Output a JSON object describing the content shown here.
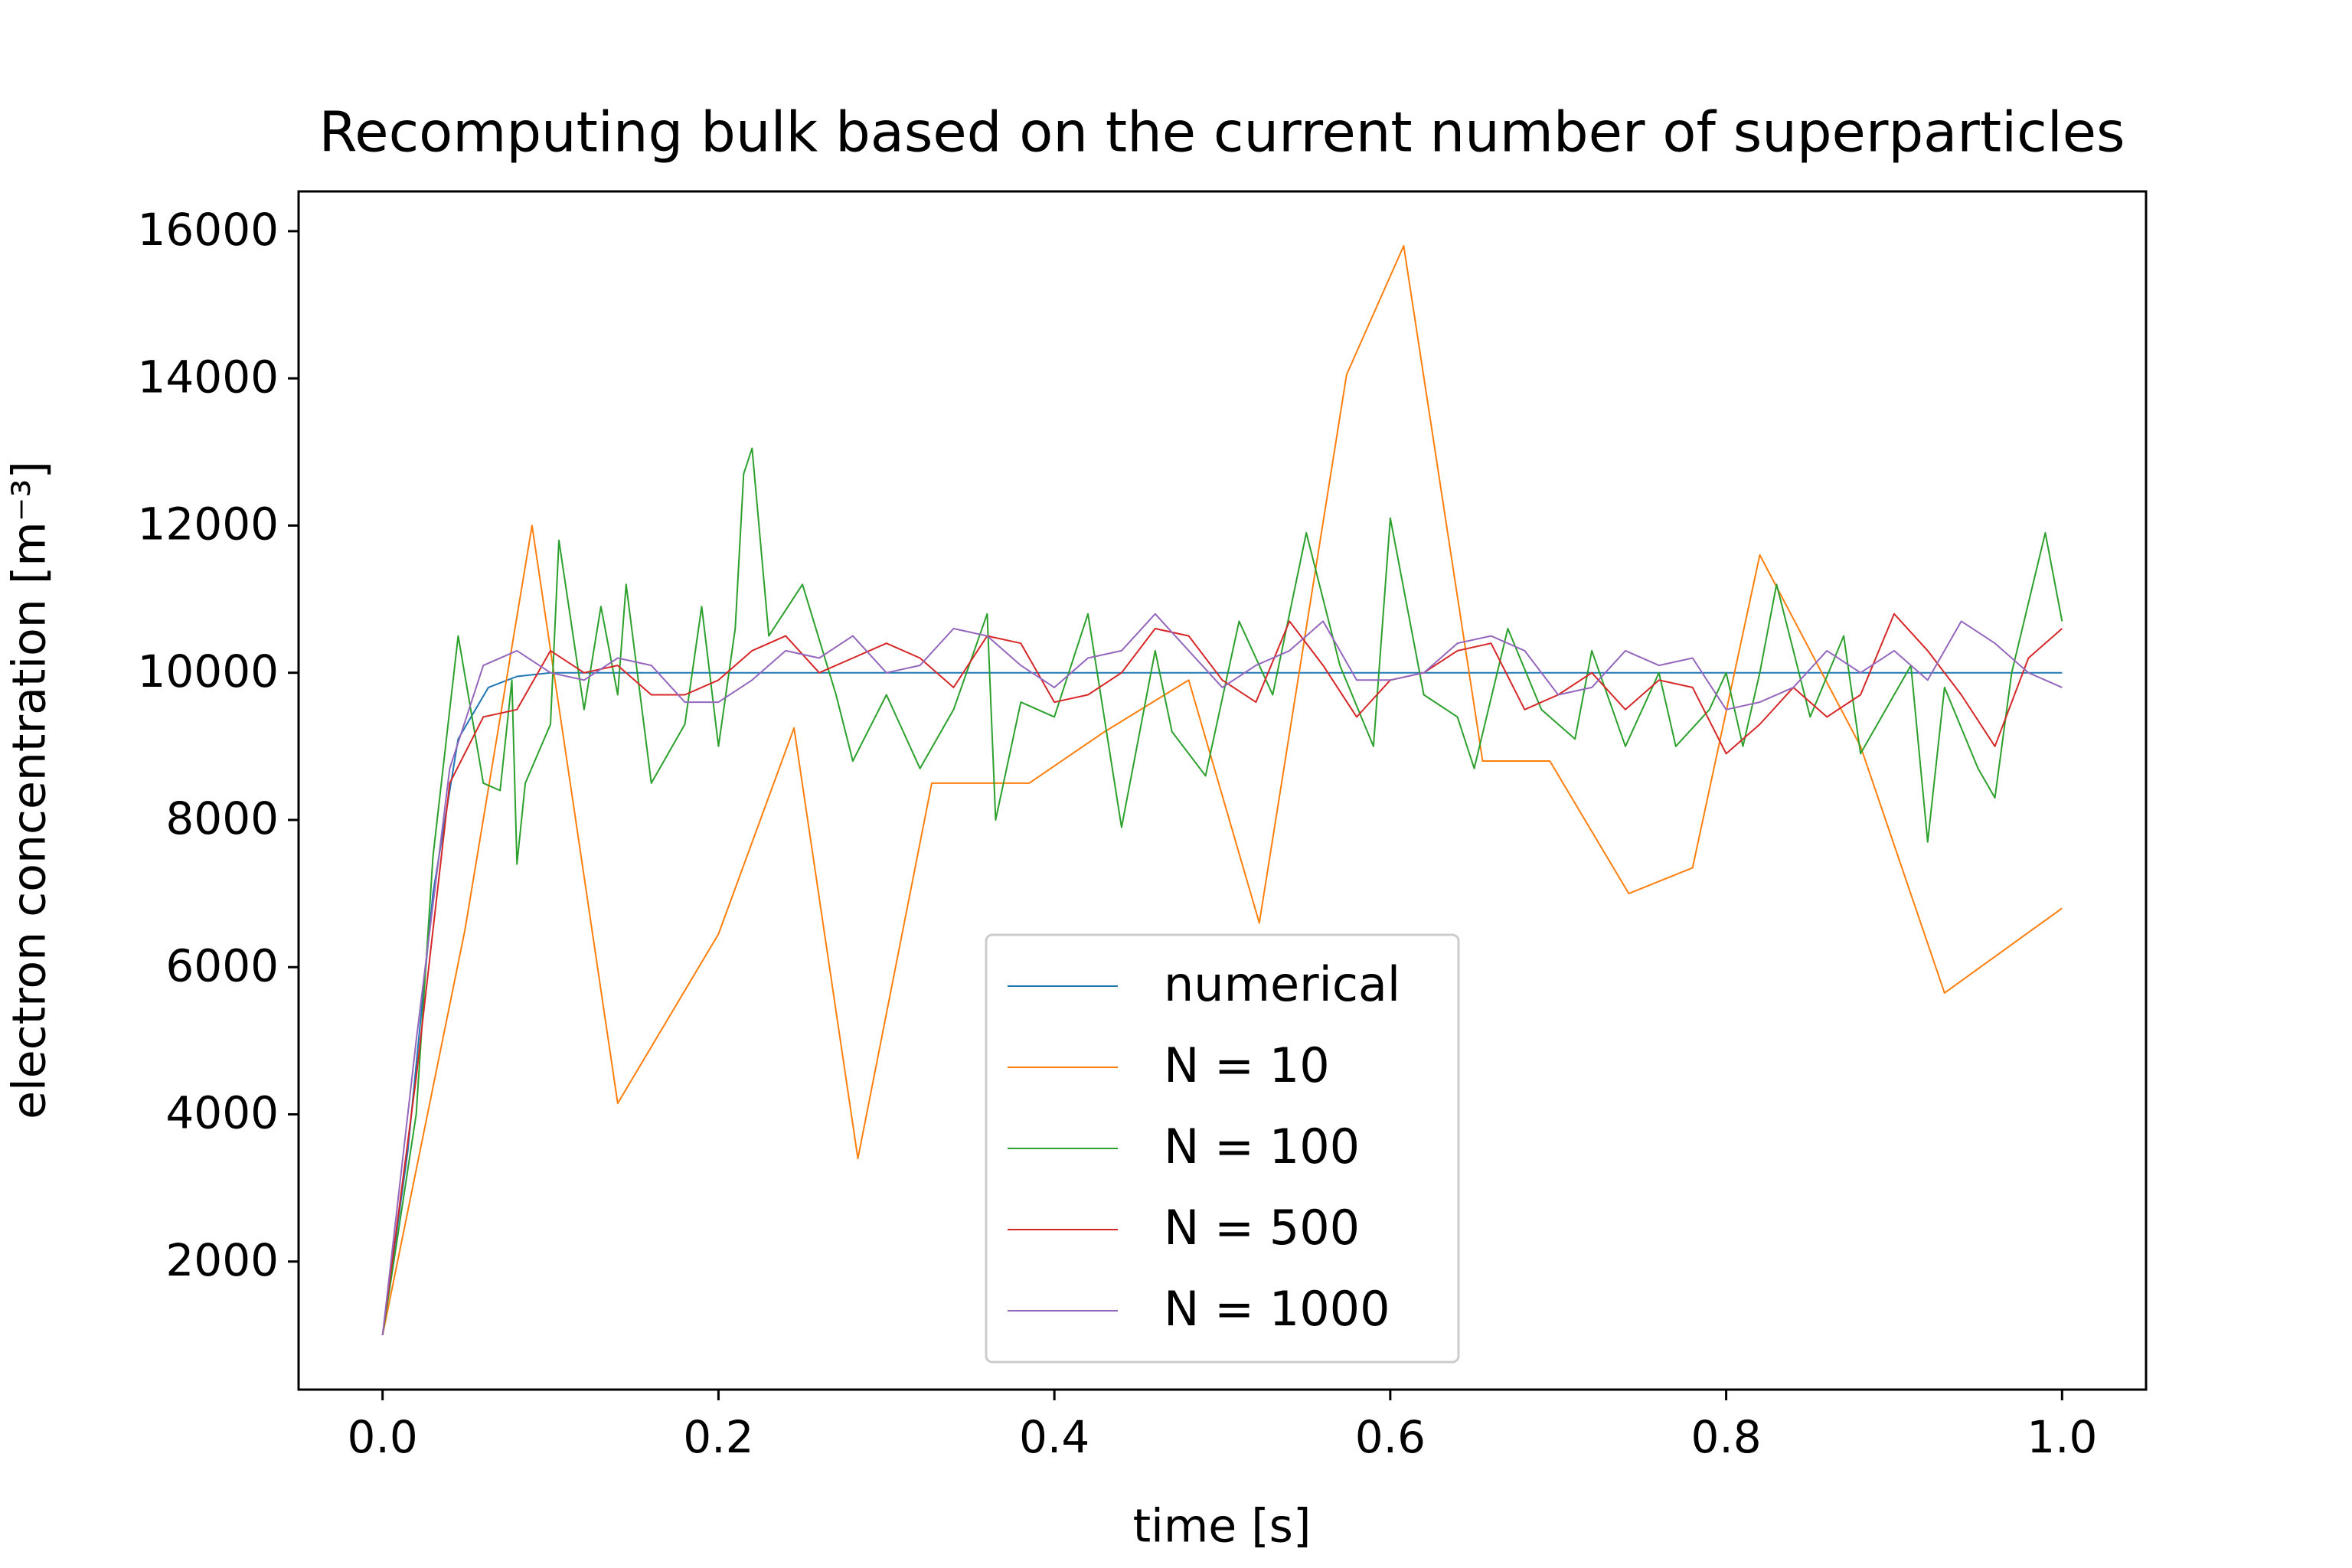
{
  "chart_data": {
    "type": "line",
    "title": "Recomputing bulk based on the current number of superparticles",
    "x_label": "time [s]",
    "y_label": "electron concentration [m⁻³]",
    "xlim": [
      -0.05,
      1.05
    ],
    "ylim": [
      260,
      16540
    ],
    "xticks": [
      {
        "value": 0,
        "label": "0.0"
      },
      0.2,
      0.4,
      0.6,
      0.8,
      {
        "value": 1,
        "label": "1.0"
      }
    ],
    "yticks": [
      2000,
      4000,
      6000,
      8000,
      10000,
      12000,
      14000,
      16000
    ],
    "legend": "lower center",
    "series": [
      {
        "name": "numerical",
        "color": "#1f77b4",
        "x": [
          0,
          0.015,
          0.03,
          0.045,
          0.063,
          0.08,
          0.1,
          1.0
        ],
        "values": [
          1000,
          3500,
          7000,
          9100,
          9800,
          9950,
          10000,
          10000
        ]
      },
      {
        "name": "N = 10",
        "color": "#ff7f0e",
        "x": [
          0,
          0.049,
          0.089,
          0.14,
          0.2,
          0.245,
          0.283,
          0.327,
          0.385,
          0.43,
          0.48,
          0.522,
          0.574,
          0.608,
          0.655,
          0.695,
          0.742,
          0.78,
          0.82,
          0.88,
          0.93,
          1.0
        ],
        "values": [
          1000,
          6500,
          12000,
          4150,
          6450,
          9250,
          3400,
          8500,
          8500,
          9200,
          9900,
          6600,
          14050,
          15800,
          8800,
          8800,
          7000,
          7350,
          11600,
          9000,
          5650,
          6800
        ]
      },
      {
        "name": "N = 100",
        "color": "#2ca02c",
        "x": [
          0,
          0.02,
          0.03,
          0.045,
          0.06,
          0.07,
          0.077,
          0.08,
          0.085,
          0.1,
          0.105,
          0.12,
          0.13,
          0.14,
          0.145,
          0.16,
          0.18,
          0.19,
          0.2,
          0.21,
          0.215,
          0.22,
          0.23,
          0.25,
          0.27,
          0.28,
          0.3,
          0.32,
          0.34,
          0.36,
          0.365,
          0.38,
          0.4,
          0.42,
          0.44,
          0.46,
          0.47,
          0.49,
          0.51,
          0.53,
          0.55,
          0.57,
          0.59,
          0.6,
          0.62,
          0.64,
          0.65,
          0.67,
          0.69,
          0.71,
          0.72,
          0.74,
          0.76,
          0.77,
          0.79,
          0.8,
          0.81,
          0.82,
          0.83,
          0.85,
          0.87,
          0.88,
          0.9,
          0.91,
          0.92,
          0.93,
          0.95,
          0.96,
          0.97,
          0.99,
          1.0
        ],
        "values": [
          1000,
          4000,
          7500,
          10500,
          8500,
          8400,
          9900,
          7400,
          8500,
          9300,
          11800,
          9500,
          10900,
          9700,
          11200,
          8500,
          9300,
          10900,
          9000,
          10600,
          12700,
          13050,
          10500,
          11200,
          9700,
          8800,
          9700,
          8700,
          9500,
          10800,
          8000,
          9600,
          9400,
          10800,
          7900,
          10300,
          9200,
          8600,
          10700,
          9700,
          11900,
          10100,
          9000,
          12100,
          9700,
          9400,
          8700,
          10600,
          9500,
          9100,
          10300,
          9000,
          10000,
          9000,
          9500,
          10000,
          9000,
          10000,
          11200,
          9400,
          10500,
          8900,
          9700,
          10100,
          7700,
          9800,
          8700,
          8300,
          10000,
          11900,
          10700
        ]
      },
      {
        "name": "N = 500",
        "color": "#d62728",
        "x": [
          0,
          0.02,
          0.04,
          0.06,
          0.08,
          0.1,
          0.12,
          0.14,
          0.16,
          0.18,
          0.2,
          0.22,
          0.24,
          0.26,
          0.28,
          0.3,
          0.32,
          0.34,
          0.36,
          0.38,
          0.4,
          0.42,
          0.44,
          0.46,
          0.48,
          0.5,
          0.52,
          0.54,
          0.56,
          0.58,
          0.6,
          0.62,
          0.64,
          0.66,
          0.68,
          0.7,
          0.72,
          0.74,
          0.76,
          0.78,
          0.8,
          0.82,
          0.84,
          0.86,
          0.88,
          0.9,
          0.92,
          0.94,
          0.96,
          0.98,
          1.0
        ],
        "values": [
          1000,
          4500,
          8500,
          9400,
          9500,
          10300,
          10000,
          10100,
          9700,
          9700,
          9900,
          10300,
          10500,
          10000,
          10200,
          10400,
          10200,
          9800,
          10500,
          10400,
          9600,
          9700,
          10000,
          10600,
          10500,
          9900,
          9600,
          10700,
          10100,
          9400,
          9900,
          10000,
          10300,
          10400,
          9500,
          9700,
          10000,
          9500,
          9900,
          9800,
          8900,
          9300,
          9800,
          9400,
          9700,
          10800,
          10300,
          9700,
          9000,
          10200,
          10600
        ]
      },
      {
        "name": "N = 1000",
        "color": "#9467bd",
        "x": [
          0,
          0.02,
          0.04,
          0.06,
          0.08,
          0.1,
          0.12,
          0.14,
          0.16,
          0.18,
          0.2,
          0.22,
          0.24,
          0.26,
          0.28,
          0.3,
          0.32,
          0.34,
          0.36,
          0.38,
          0.4,
          0.42,
          0.44,
          0.46,
          0.48,
          0.5,
          0.52,
          0.54,
          0.56,
          0.58,
          0.6,
          0.62,
          0.64,
          0.66,
          0.68,
          0.7,
          0.72,
          0.74,
          0.76,
          0.78,
          0.8,
          0.82,
          0.84,
          0.86,
          0.88,
          0.9,
          0.92,
          0.94,
          0.96,
          0.98,
          1.0
        ],
        "values": [
          1000,
          5000,
          8700,
          10100,
          10300,
          10000,
          9900,
          10200,
          10100,
          9600,
          9600,
          9900,
          10300,
          10200,
          10500,
          10000,
          10100,
          10600,
          10500,
          10100,
          9800,
          10200,
          10300,
          10800,
          10300,
          9800,
          10100,
          10300,
          10700,
          9900,
          9900,
          10000,
          10400,
          10500,
          10300,
          9700,
          9800,
          10300,
          10100,
          10200,
          9500,
          9600,
          9800,
          10300,
          10000,
          10300,
          9900,
          10700,
          10400,
          10000,
          9800
        ]
      }
    ]
  }
}
